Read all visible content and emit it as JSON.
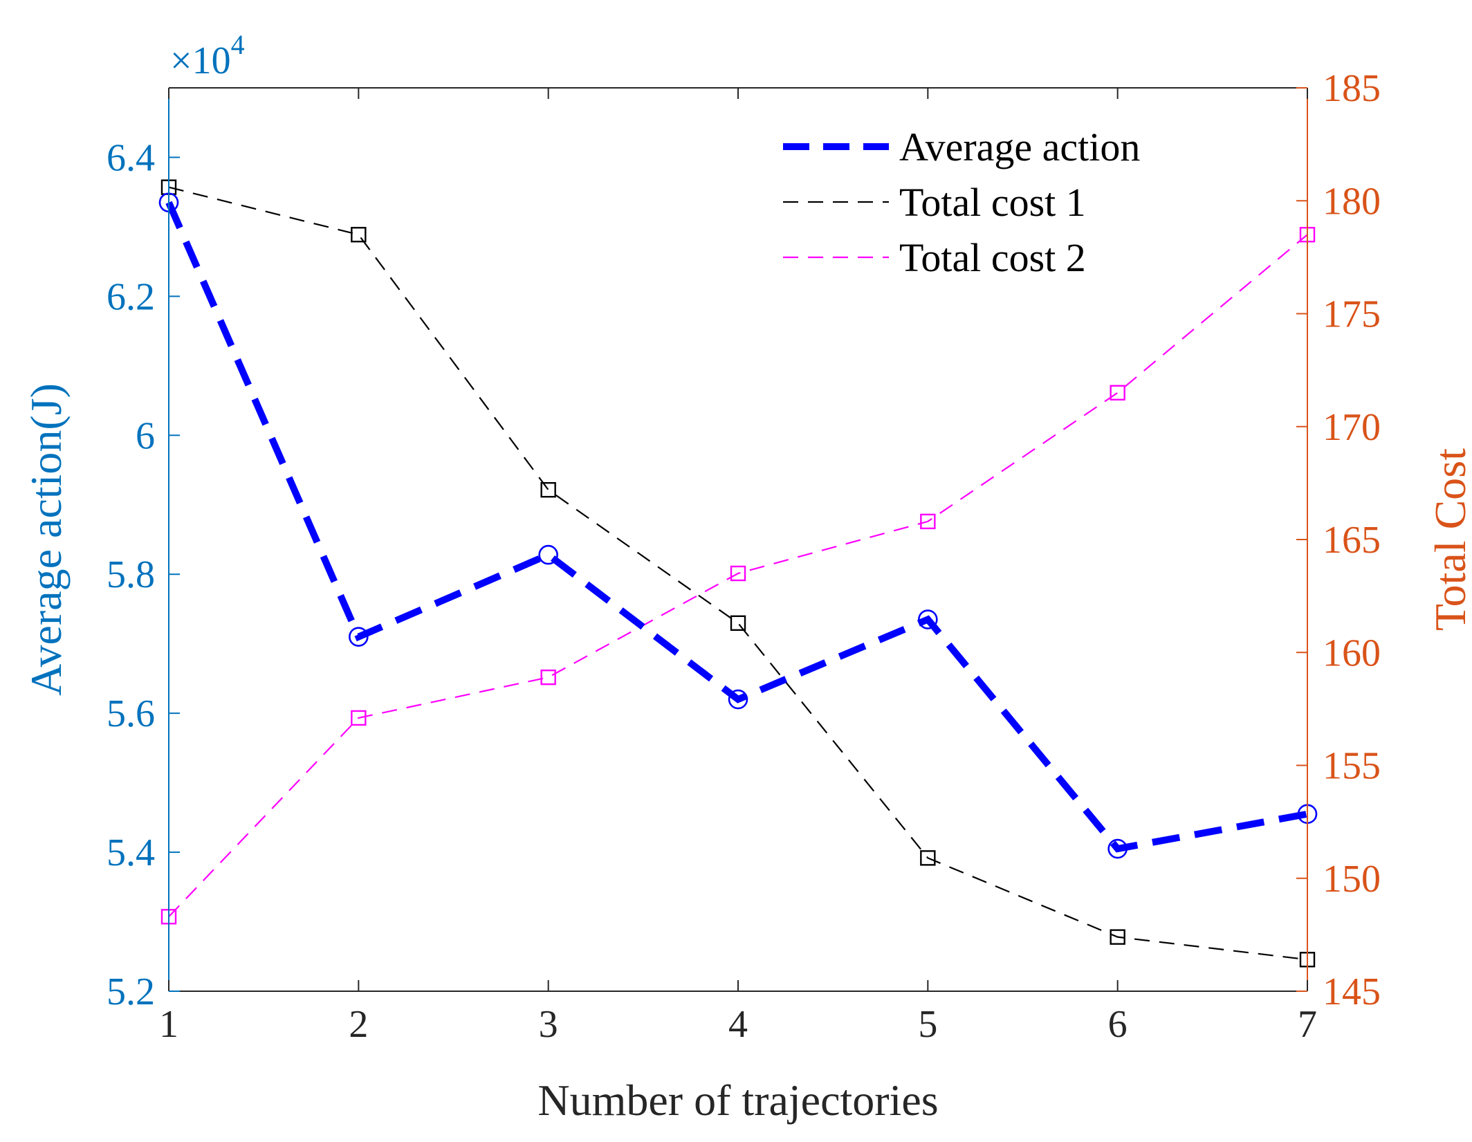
{
  "chart_data": {
    "type": "line",
    "title": "",
    "xlabel": "Number of trajectories",
    "ylabel_left": "Average action(J)",
    "ylabel_right": "Total Cost",
    "x": [
      1,
      2,
      3,
      4,
      5,
      6,
      7
    ],
    "xlim": [
      1,
      7
    ],
    "x_ticks": [
      "1",
      "2",
      "3",
      "4",
      "5",
      "6",
      "7"
    ],
    "ylim_left": [
      5.2,
      6.5
    ],
    "y_ticks_left": [
      "5.2",
      "5.4",
      "5.6",
      "5.8",
      "6",
      "6.2",
      "6.4"
    ],
    "y_tick_values_left": [
      5.2,
      5.4,
      5.6,
      5.8,
      6.0,
      6.2,
      6.4
    ],
    "left_exponent": {
      "base": "×10",
      "power": "4"
    },
    "ylim_right": [
      145,
      185
    ],
    "y_ticks_right": [
      "145",
      "150",
      "155",
      "160",
      "165",
      "170",
      "175",
      "180",
      "185"
    ],
    "y_tick_values_right": [
      145,
      150,
      155,
      160,
      165,
      170,
      175,
      180,
      185
    ],
    "legend_position": "top-right",
    "grid": false,
    "series": [
      {
        "name": "Average action",
        "axis": "left",
        "color": "#0000ff",
        "style": "dashed-thick",
        "marker": "circle",
        "values": [
          6.335,
          5.71,
          5.828,
          5.62,
          5.735,
          5.405,
          5.455
        ]
      },
      {
        "name": "Total cost 1",
        "axis": "right",
        "color": "#000000",
        "style": "dashed-thin",
        "marker": "square",
        "values": [
          180.6,
          178.5,
          167.2,
          161.3,
          150.9,
          147.4,
          146.4
        ]
      },
      {
        "name": "Total cost 2",
        "axis": "right",
        "color": "#ff00ff",
        "style": "dashed-thin",
        "marker": "square",
        "values": [
          148.3,
          157.1,
          158.9,
          163.5,
          165.8,
          171.5,
          178.5
        ]
      }
    ],
    "colors": {
      "left_axis": "#0072bd",
      "right_axis": "#d95319",
      "bottom_axis": "#262626"
    }
  }
}
